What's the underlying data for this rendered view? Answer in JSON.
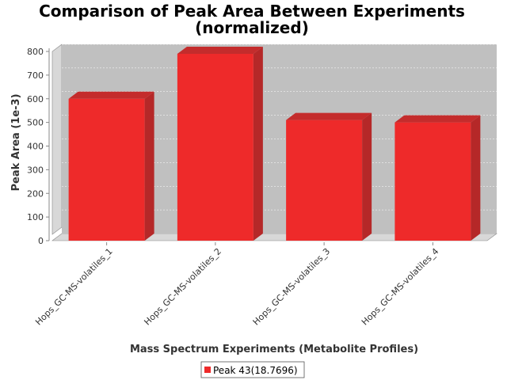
{
  "chart_data": {
    "type": "bar",
    "title_line1": "Comparison of Peak Area Between Experiments",
    "title_line2": "(normalized)",
    "xlabel": "Mass Spectrum Experiments (Metabolite Profiles)",
    "ylabel": "Peak Area (1e-3)",
    "categories": [
      "Hops_GC-MS-volatiles_1",
      "Hops_GC-MS-volatiles_2",
      "Hops_GC-MS-volatiles_3",
      "Hops_GC-MS-volatiles_4"
    ],
    "series": [
      {
        "name": "Peak 43(18.7696)",
        "values": [
          600,
          790,
          510,
          500
        ],
        "color": "#ee2a2a"
      }
    ],
    "ylim": [
      0,
      800
    ],
    "yticks": [
      "0",
      "100",
      "200",
      "300",
      "400",
      "500",
      "600",
      "700",
      "800"
    ],
    "grid": true,
    "legend_position": "bottom",
    "style": "3d-bar",
    "colors": {
      "plot_back": "#c0c0c0",
      "plot_wall": "#d8d8d8",
      "gridline": "#ffffff"
    }
  }
}
